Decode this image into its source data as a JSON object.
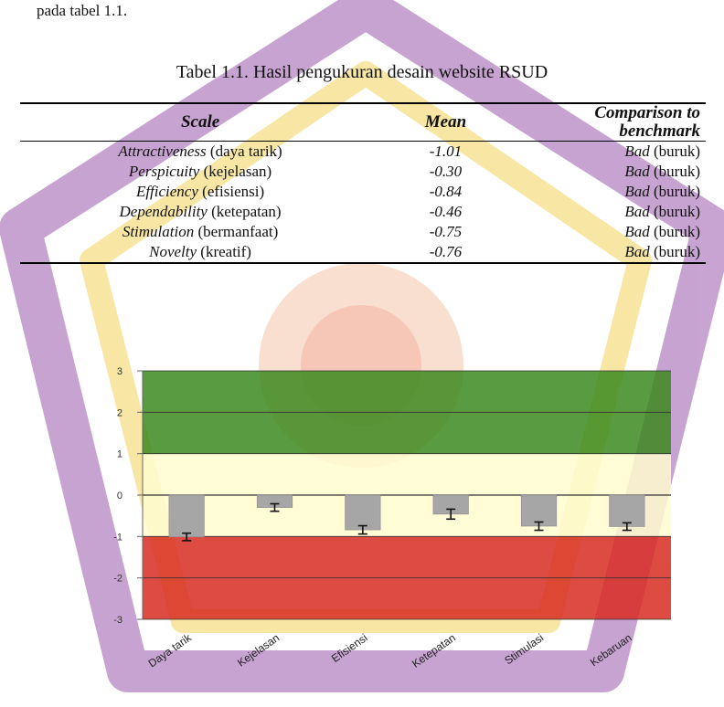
{
  "intro_text": "pada tabel 1.1.",
  "table": {
    "caption": "Tabel 1.1. Hasil pengukuran desain website RSUD",
    "headers": {
      "scale": "Scale",
      "mean": "Mean",
      "comparison_line1": "Comparison to",
      "comparison_line2": "benchmark"
    },
    "rows": [
      {
        "scale_en": "Attractiveness",
        "scale_id": "(daya tarik)",
        "mean": "-1.01",
        "cmp_en": "Bad",
        "cmp_id": "(buruk)"
      },
      {
        "scale_en": "Perspicuity",
        "scale_id": "(kejelasan)",
        "mean": "-0.30",
        "cmp_en": "Bad",
        "cmp_id": "(buruk)"
      },
      {
        "scale_en": "Efficiency",
        "scale_id": "(efisiensi)",
        "mean": "-0.84",
        "cmp_en": "Bad",
        "cmp_id": "(buruk)"
      },
      {
        "scale_en": "Dependability",
        "scale_id": "(ketepatan)",
        "mean": "-0.46",
        "cmp_en": "Bad",
        "cmp_id": "(buruk)"
      },
      {
        "scale_en": "Stimulation",
        "scale_id": "(bermanfaat)",
        "mean": "-0.75",
        "cmp_en": "Bad",
        "cmp_id": "(buruk)"
      },
      {
        "scale_en": "Novelty",
        "scale_id": "(kreatif)",
        "mean": "-0.76",
        "cmp_en": "Bad",
        "cmp_id": "(buruk)"
      }
    ]
  },
  "chart_data": {
    "type": "bar",
    "categories": [
      "Daya tarik",
      "Kejelasan",
      "Efisiensi",
      "Ketepatan",
      "Stimulasi",
      "Kebaruan"
    ],
    "values": [
      -1.01,
      -0.3,
      -0.84,
      -0.46,
      -0.75,
      -0.76
    ],
    "error": [
      0.09,
      0.09,
      0.1,
      0.12,
      0.1,
      0.09
    ],
    "ylim": [
      -3,
      3
    ],
    "yticks": [
      "3",
      "2",
      "1",
      "0",
      "-1",
      "-2",
      "-3"
    ],
    "benchmark_bands": [
      {
        "from": 1,
        "to": 3,
        "color": "#3c8a1e"
      },
      {
        "from": -1,
        "to": 1,
        "color": "#fffccf"
      },
      {
        "from": -3,
        "to": -1,
        "color": "#d82c22"
      }
    ],
    "bar_color": "#a6a6a6",
    "grid": true
  }
}
